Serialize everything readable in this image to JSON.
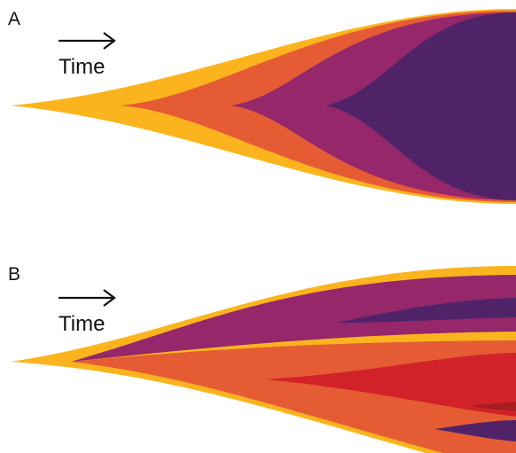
{
  "panels": [
    {
      "label": "A",
      "axis_label": "Time"
    },
    {
      "label": "B",
      "axis_label": "Time"
    }
  ],
  "colors": {
    "yellow": "#FBB41E",
    "orange": "#E55C34",
    "red": "#D12229",
    "dark_red": "#A61D22",
    "magenta": "#95276A",
    "purple": "#502369"
  }
}
